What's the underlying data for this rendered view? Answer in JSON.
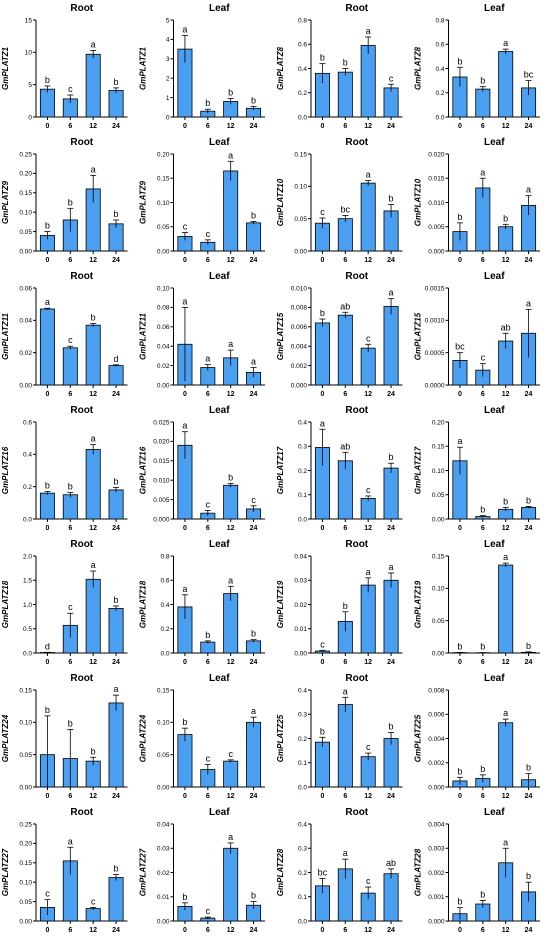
{
  "figure": {
    "bar_color": "#4a9ff0",
    "bar_stroke": "#000000",
    "text_color": "#000000"
  },
  "chart_data": [
    {
      "type": "bar",
      "title": "Root",
      "ylabel": "GmPLATZ1",
      "categories": [
        "0",
        "6",
        "12",
        "24"
      ],
      "values": [
        4.3,
        2.8,
        9.7,
        4.1
      ],
      "errors": [
        0.5,
        0.6,
        0.6,
        0.4
      ],
      "letters": [
        "b",
        "c",
        "a",
        "b"
      ],
      "ylim": [
        0,
        15
      ],
      "yticks": [
        "0",
        "5",
        "10",
        "15"
      ]
    },
    {
      "type": "bar",
      "title": "Leaf",
      "ylabel": "GmPLATZ1",
      "categories": [
        "0",
        "6",
        "12",
        "24"
      ],
      "values": [
        3.5,
        0.3,
        0.8,
        0.45
      ],
      "errors": [
        0.7,
        0.1,
        0.15,
        0.1
      ],
      "letters": [
        "a",
        "b",
        "b",
        "b"
      ],
      "ylim": [
        0,
        5
      ],
      "yticks": [
        "0",
        "1",
        "2",
        "3",
        "4",
        "5"
      ]
    },
    {
      "type": "bar",
      "title": "Root",
      "ylabel": "GmPLATZ8",
      "categories": [
        "0",
        "6",
        "12",
        "24"
      ],
      "values": [
        0.36,
        0.37,
        0.59,
        0.24
      ],
      "errors": [
        0.08,
        0.03,
        0.07,
        0.03
      ],
      "letters": [
        "b",
        "b",
        "a",
        "c"
      ],
      "ylim": [
        0,
        0.8
      ],
      "yticks": [
        "0.0",
        "0.2",
        "0.4",
        "0.6",
        "0.8"
      ]
    },
    {
      "type": "bar",
      "title": "Leaf",
      "ylabel": "GmPLATZ8",
      "categories": [
        "0",
        "6",
        "12",
        "24"
      ],
      "values": [
        0.33,
        0.23,
        0.54,
        0.24
      ],
      "errors": [
        0.08,
        0.02,
        0.02,
        0.06
      ],
      "letters": [
        "b",
        "b",
        "a",
        "bc"
      ],
      "ylim": [
        0,
        0.8
      ],
      "yticks": [
        "0.0",
        "0.2",
        "0.4",
        "0.6",
        "0.8"
      ]
    },
    {
      "type": "bar",
      "title": "Root",
      "ylabel": "GmPLATZ9",
      "categories": [
        "0",
        "6",
        "12",
        "24"
      ],
      "values": [
        0.04,
        0.08,
        0.16,
        0.07
      ],
      "errors": [
        0.01,
        0.03,
        0.035,
        0.01
      ],
      "letters": [
        "b",
        "b",
        "a",
        "b"
      ],
      "ylim": [
        0,
        0.25
      ],
      "yticks": [
        "0.00",
        "0.05",
        "0.10",
        "0.15",
        "0.20",
        "0.25"
      ]
    },
    {
      "type": "bar",
      "title": "Leaf",
      "ylabel": "GmPLATZ9",
      "categories": [
        "0",
        "6",
        "12",
        "24"
      ],
      "values": [
        0.03,
        0.018,
        0.165,
        0.058
      ],
      "errors": [
        0.008,
        0.005,
        0.02,
        0.003
      ],
      "letters": [
        "c",
        "c",
        "a",
        "b"
      ],
      "ylim": [
        0,
        0.2
      ],
      "yticks": [
        "0.00",
        "0.05",
        "0.10",
        "0.15",
        "0.20"
      ]
    },
    {
      "type": "bar",
      "title": "Root",
      "ylabel": "GmPLATZ10",
      "categories": [
        "0",
        "6",
        "12",
        "24"
      ],
      "values": [
        0.043,
        0.05,
        0.105,
        0.062
      ],
      "errors": [
        0.008,
        0.005,
        0.004,
        0.01
      ],
      "letters": [
        "c",
        "bc",
        "a",
        "b"
      ],
      "ylim": [
        0,
        0.15
      ],
      "yticks": [
        "0.00",
        "0.05",
        "0.10",
        "0.15"
      ]
    },
    {
      "type": "bar",
      "title": "Leaf",
      "ylabel": "GmPLATZ10",
      "categories": [
        "0",
        "6",
        "12",
        "24"
      ],
      "values": [
        0.004,
        0.013,
        0.005,
        0.0094
      ],
      "errors": [
        0.0018,
        0.002,
        0.0005,
        0.002
      ],
      "letters": [
        "b",
        "a",
        "b",
        "a"
      ],
      "ylim": [
        0,
        0.02
      ],
      "yticks": [
        "0.000",
        "0.005",
        "0.010",
        "0.015",
        "0.020"
      ]
    },
    {
      "type": "bar",
      "title": "Root",
      "ylabel": "GmPLATZ11",
      "categories": [
        "0",
        "6",
        "12",
        "24"
      ],
      "values": [
        0.047,
        0.023,
        0.037,
        0.012
      ],
      "errors": [
        0.0005,
        0.001,
        0.001,
        0.0005
      ],
      "letters": [
        "a",
        "c",
        "b",
        "d"
      ],
      "ylim": [
        0,
        0.06
      ],
      "yticks": [
        "0.00",
        "0.02",
        "0.04",
        "0.06"
      ]
    },
    {
      "type": "bar",
      "title": "Leaf",
      "ylabel": "GmPLATZ11",
      "categories": [
        "0",
        "6",
        "12",
        "24"
      ],
      "values": [
        0.042,
        0.018,
        0.028,
        0.013
      ],
      "errors": [
        0.038,
        0.003,
        0.008,
        0.005
      ],
      "letters": [
        "a",
        "a",
        "a",
        "a"
      ],
      "ylim": [
        0,
        0.1
      ],
      "yticks": [
        "0.00",
        "0.02",
        "0.04",
        "0.06",
        "0.08",
        "0.10"
      ]
    },
    {
      "type": "bar",
      "title": "Root",
      "ylabel": "GmPLATZ15",
      "categories": [
        "0",
        "6",
        "12",
        "24"
      ],
      "values": [
        0.0064,
        0.0072,
        0.0038,
        0.0081
      ],
      "errors": [
        0.0004,
        0.0003,
        0.0004,
        0.0008
      ],
      "letters": [
        "b",
        "ab",
        "c",
        "a"
      ],
      "ylim": [
        0,
        0.01
      ],
      "yticks": [
        "0.000",
        "0.002",
        "0.004",
        "0.006",
        "0.008",
        "0.010"
      ]
    },
    {
      "type": "bar",
      "title": "Leaf",
      "ylabel": "GmPLATZ15",
      "categories": [
        "0",
        "6",
        "12",
        "24"
      ],
      "values": [
        0.00038,
        0.00023,
        0.00068,
        0.0008
      ],
      "errors": [
        0.00012,
        0.0001,
        0.00012,
        0.00037
      ],
      "letters": [
        "bc",
        "c",
        "ab",
        "a"
      ],
      "ylim": [
        0,
        0.0015
      ],
      "yticks": [
        "0.0000",
        "0.0005",
        "0.0010",
        "0.0015"
      ]
    },
    {
      "type": "bar",
      "title": "Root",
      "ylabel": "GmPLATZ16",
      "categories": [
        "0",
        "6",
        "12",
        "24"
      ],
      "values": [
        0.16,
        0.15,
        0.43,
        0.18
      ],
      "errors": [
        0.01,
        0.015,
        0.03,
        0.015
      ],
      "letters": [
        "b",
        "b",
        "a",
        "b"
      ],
      "ylim": [
        0,
        0.6
      ],
      "yticks": [
        "0.0",
        "0.2",
        "0.4",
        "0.6"
      ]
    },
    {
      "type": "bar",
      "title": "Leaf",
      "ylabel": "GmPLATZ16",
      "categories": [
        "0",
        "6",
        "12",
        "24"
      ],
      "values": [
        0.019,
        0.0015,
        0.0087,
        0.0026
      ],
      "errors": [
        0.0035,
        0.0007,
        0.0005,
        0.0008
      ],
      "letters": [
        "a",
        "c",
        "b",
        "c"
      ],
      "ylim": [
        0,
        0.025
      ],
      "yticks": [
        "0.000",
        "0.005",
        "0.010",
        "0.015",
        "0.020",
        "0.025"
      ]
    },
    {
      "type": "bar",
      "title": "Root",
      "ylabel": "GmPLATZ17",
      "categories": [
        "0",
        "6",
        "12",
        "24"
      ],
      "values": [
        0.295,
        0.24,
        0.085,
        0.21
      ],
      "errors": [
        0.075,
        0.035,
        0.01,
        0.02
      ],
      "letters": [
        "a",
        "ab",
        "c",
        "b"
      ],
      "ylim": [
        0,
        0.4
      ],
      "yticks": [
        "0.0",
        "0.1",
        "0.2",
        "0.3",
        "0.4"
      ]
    },
    {
      "type": "bar",
      "title": "Leaf",
      "ylabel": "GmPLATZ17",
      "categories": [
        "0",
        "6",
        "12",
        "24"
      ],
      "values": [
        0.12,
        0.005,
        0.02,
        0.024
      ],
      "errors": [
        0.028,
        0.002,
        0.004,
        0.002
      ],
      "letters": [
        "a",
        "b",
        "b",
        "b"
      ],
      "ylim": [
        0,
        0.2
      ],
      "yticks": [
        "0.00",
        "0.05",
        "0.10",
        "0.15",
        "0.20"
      ]
    },
    {
      "type": "bar",
      "title": "Root",
      "ylabel": "GmPLATZ18",
      "categories": [
        "0",
        "6",
        "12",
        "24"
      ],
      "values": [
        0.01,
        0.57,
        1.52,
        0.92
      ],
      "errors": [
        0.005,
        0.25,
        0.17,
        0.05
      ],
      "letters": [
        "d",
        "c",
        "a",
        "b"
      ],
      "ylim": [
        0,
        2
      ],
      "yticks": [
        "0.0",
        "0.5",
        "1.0",
        "1.5",
        "2.0"
      ]
    },
    {
      "type": "bar",
      "title": "Leaf",
      "ylabel": "GmPLATZ18",
      "categories": [
        "0",
        "6",
        "12",
        "24"
      ],
      "values": [
        0.38,
        0.09,
        0.49,
        0.1
      ],
      "errors": [
        0.1,
        0.01,
        0.06,
        0.01
      ],
      "letters": [
        "a",
        "b",
        "a",
        "b"
      ],
      "ylim": [
        0,
        0.8
      ],
      "yticks": [
        "0.0",
        "0.2",
        "0.4",
        "0.6",
        "0.8"
      ]
    },
    {
      "type": "bar",
      "title": "Root",
      "ylabel": "GmPLATZ19",
      "categories": [
        "0",
        "6",
        "12",
        "24"
      ],
      "values": [
        0.0008,
        0.013,
        0.028,
        0.03
      ],
      "errors": [
        0.0003,
        0.004,
        0.003,
        0.003
      ],
      "letters": [
        "c",
        "b",
        "a",
        "a"
      ],
      "ylim": [
        0,
        0.04
      ],
      "yticks": [
        "0.00",
        "0.01",
        "0.02",
        "0.03",
        "0.04"
      ]
    },
    {
      "type": "bar",
      "title": "Leaf",
      "ylabel": "GmPLATZ19",
      "categories": [
        "0",
        "6",
        "12",
        "24"
      ],
      "values": [
        0.0006,
        0.0004,
        0.136,
        0.001
      ],
      "errors": [
        0.0003,
        0.0002,
        0.003,
        0.0008
      ],
      "letters": [
        "b",
        "b",
        "a",
        "b"
      ],
      "ylim": [
        0,
        0.15
      ],
      "yticks": [
        "0.00",
        "0.05",
        "0.10",
        "0.15"
      ]
    },
    {
      "type": "bar",
      "title": "Root",
      "ylabel": "GmPLATZ24",
      "categories": [
        "0",
        "6",
        "12",
        "24"
      ],
      "values": [
        0.05,
        0.044,
        0.04,
        0.13
      ],
      "errors": [
        0.06,
        0.045,
        0.006,
        0.012
      ],
      "letters": [
        "b",
        "b",
        "b",
        "a"
      ],
      "ylim": [
        0,
        0.15
      ],
      "yticks": [
        "0.00",
        "0.05",
        "0.10",
        "0.15"
      ]
    },
    {
      "type": "bar",
      "title": "Leaf",
      "ylabel": "GmPLATZ24",
      "categories": [
        "0",
        "6",
        "12",
        "24"
      ],
      "values": [
        0.081,
        0.027,
        0.04,
        0.1
      ],
      "errors": [
        0.01,
        0.008,
        0.002,
        0.008
      ],
      "letters": [
        "b",
        "c",
        "c",
        "a"
      ],
      "ylim": [
        0,
        0.15
      ],
      "yticks": [
        "0.00",
        "0.05",
        "0.10",
        "0.15"
      ]
    },
    {
      "type": "bar",
      "title": "Root",
      "ylabel": "GmPLATZ25",
      "categories": [
        "0",
        "6",
        "12",
        "24"
      ],
      "values": [
        0.185,
        0.34,
        0.125,
        0.2
      ],
      "errors": [
        0.02,
        0.03,
        0.015,
        0.025
      ],
      "letters": [
        "b",
        "a",
        "c",
        "b"
      ],
      "ylim": [
        0,
        0.4
      ],
      "yticks": [
        "0.0",
        "0.1",
        "0.2",
        "0.3",
        "0.4"
      ]
    },
    {
      "type": "bar",
      "title": "Leaf",
      "ylabel": "GmPLATZ25",
      "categories": [
        "0",
        "6",
        "12",
        "24"
      ],
      "values": [
        0.0005,
        0.0007,
        0.0053,
        0.0006
      ],
      "errors": [
        0.0003,
        0.0003,
        0.0003,
        0.0005
      ],
      "letters": [
        "b",
        "b",
        "a",
        "b"
      ],
      "ylim": [
        0,
        0.008
      ],
      "yticks": [
        "0.000",
        "0.002",
        "0.004",
        "0.006",
        "0.008"
      ]
    },
    {
      "type": "bar",
      "title": "Root",
      "ylabel": "GmPLATZ27",
      "categories": [
        "0",
        "6",
        "12",
        "24"
      ],
      "values": [
        0.035,
        0.155,
        0.032,
        0.112
      ],
      "errors": [
        0.02,
        0.035,
        0.003,
        0.008
      ],
      "letters": [
        "c",
        "a",
        "c",
        "b"
      ],
      "ylim": [
        0,
        0.25
      ],
      "yticks": [
        "0.00",
        "0.05",
        "0.10",
        "0.15",
        "0.20",
        "0.25"
      ]
    },
    {
      "type": "bar",
      "title": "Leaf",
      "ylabel": "GmPLATZ27",
      "categories": [
        "0",
        "6",
        "12",
        "24"
      ],
      "values": [
        0.006,
        0.0012,
        0.03,
        0.0065
      ],
      "errors": [
        0.0015,
        0.0004,
        0.0022,
        0.0015
      ],
      "letters": [
        "b",
        "c",
        "a",
        "b"
      ],
      "ylim": [
        0,
        0.04
      ],
      "yticks": [
        "0.00",
        "0.01",
        "0.02",
        "0.03",
        "0.04"
      ]
    },
    {
      "type": "bar",
      "title": "Root",
      "ylabel": "GmPLATZ28",
      "categories": [
        "0",
        "6",
        "12",
        "24"
      ],
      "values": [
        0.145,
        0.215,
        0.115,
        0.195
      ],
      "errors": [
        0.03,
        0.04,
        0.025,
        0.02
      ],
      "letters": [
        "bc",
        "a",
        "c",
        "ab"
      ],
      "ylim": [
        0,
        0.4
      ],
      "yticks": [
        "0.0",
        "0.1",
        "0.2",
        "0.3",
        "0.4"
      ]
    },
    {
      "type": "bar",
      "title": "Leaf",
      "ylabel": "GmPLATZ28",
      "categories": [
        "0",
        "6",
        "12",
        "24"
      ],
      "values": [
        0.0003,
        0.0007,
        0.0024,
        0.0012
      ],
      "errors": [
        0.00025,
        0.00015,
        0.0006,
        0.0004
      ],
      "letters": [
        "b",
        "b",
        "a",
        "b"
      ],
      "ylim": [
        0,
        0.004
      ],
      "yticks": [
        "0.000",
        "0.001",
        "0.002",
        "0.003",
        "0.004"
      ]
    }
  ]
}
